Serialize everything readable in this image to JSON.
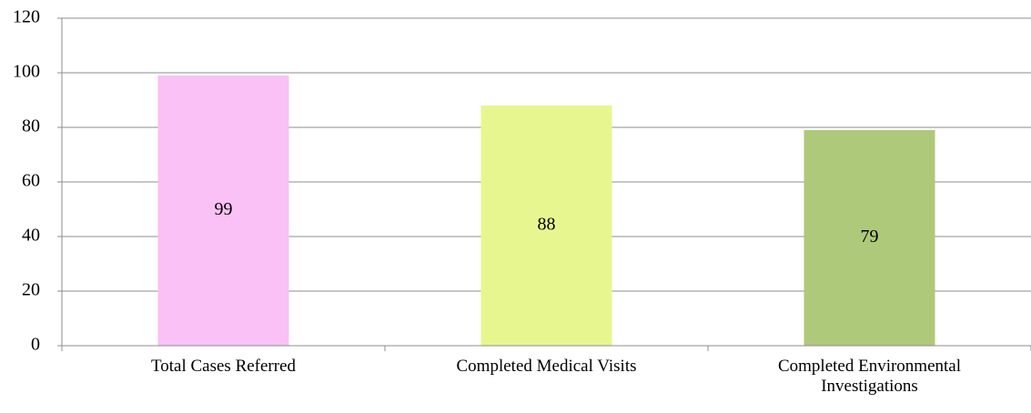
{
  "chart_data": {
    "type": "bar",
    "categories": [
      "Total Cases Referred",
      "Completed Medical Visits",
      "Completed Environmental Investigations"
    ],
    "values": [
      99,
      88,
      79
    ],
    "colors": [
      "#f9c1f5",
      "#e8f68f",
      "#afc97a"
    ],
    "ylim": [
      0,
      120
    ],
    "yticks": [
      0,
      20,
      40,
      60,
      80,
      100,
      120
    ],
    "grid": true
  }
}
